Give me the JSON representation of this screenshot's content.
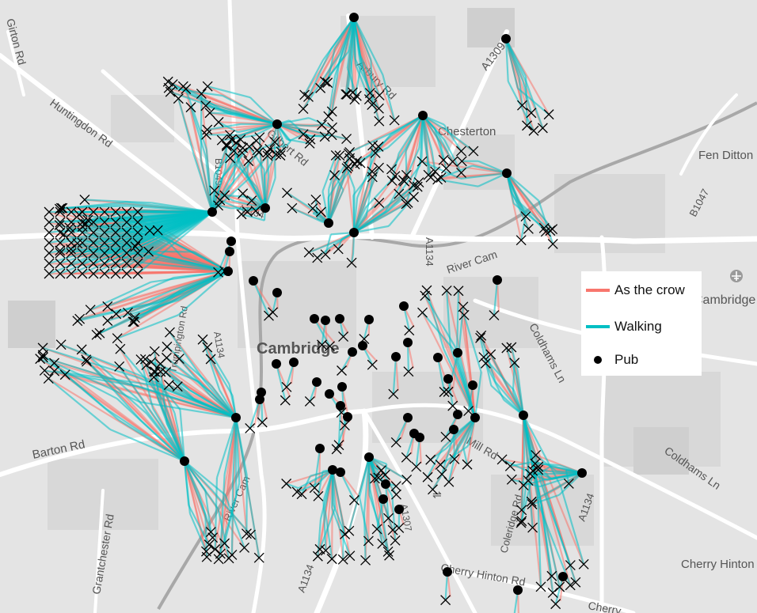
{
  "map": {
    "city_label": "Cambridge",
    "place_labels": [
      "Girton Rd",
      "Huntingdon Rd",
      "Arbury Rd",
      "A1309",
      "Chesterton",
      "Fen Ditton",
      "B1047",
      "Gilbert Rd",
      "B1049",
      "A1134",
      "River Cam",
      "A1134",
      "Cambridge A",
      "Coldhams Ln",
      "Coldhams Ln",
      "Mill Rd",
      "A1134",
      "Coleridge Rd",
      "Cherry Hinton",
      "Cherry Hinton Rd",
      "A1307",
      "A1134",
      "River Cam",
      "Barton Rd",
      "Grantchester Rd",
      "Trumpington Rd",
      "A1134",
      "Cherry"
    ]
  },
  "legend": {
    "items": [
      {
        "label": "As the crow",
        "color": "#f8766d",
        "kind": "line"
      },
      {
        "label": "Walking",
        "color": "#00bfc4",
        "kind": "line"
      },
      {
        "label": "Pub",
        "color": "#000000",
        "kind": "dot"
      }
    ]
  },
  "colors": {
    "crow": "#f8766d",
    "walking": "#00bfc4",
    "pub": "#000000",
    "house_marker": "#000000"
  },
  "icons": [
    "airport-icon",
    "railway-station-icon"
  ]
}
